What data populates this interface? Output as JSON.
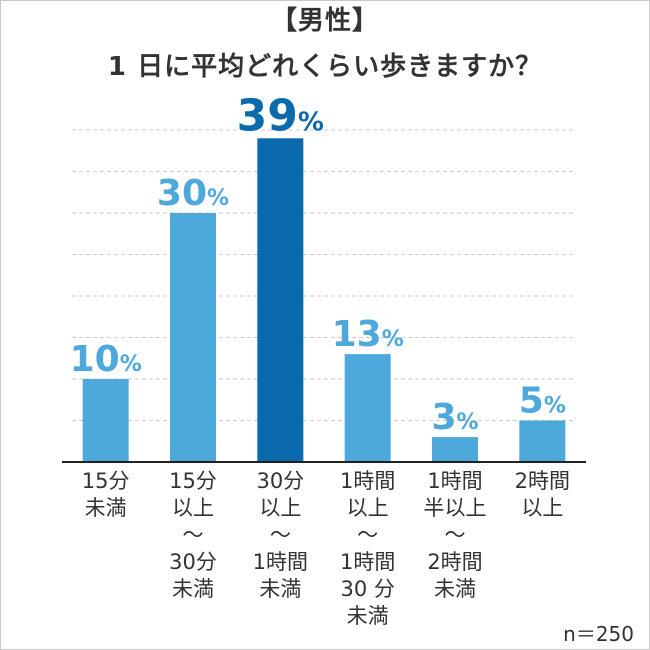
{
  "chart_data": {
    "type": "bar",
    "title": "【男性】",
    "subtitle": "1 日に平均どれくらい歩きますか？",
    "categories": [
      [
        "15分",
        "未満"
      ],
      [
        "15分",
        "以上",
        "〜",
        "30分",
        "未満"
      ],
      [
        "30分",
        "以上",
        "〜",
        "1時間",
        "未満"
      ],
      [
        "1時間",
        "以上",
        "〜",
        "1時間",
        "30 分",
        "未満"
      ],
      [
        "1時間",
        "半以上",
        "〜",
        "2時間",
        "未満"
      ],
      [
        "2時間",
        "以上"
      ]
    ],
    "values": [
      10,
      30,
      39,
      13,
      3,
      5
    ],
    "value_suffix": "%",
    "ylim": [
      0,
      40
    ],
    "grid": true,
    "colors": {
      "bar": "#4da8dc",
      "highlight": "#0b6aad",
      "label": "#4da8dc",
      "highlight_label": "#0b6aad",
      "grid": "#cccccc",
      "axis": "#222222",
      "text": "#333333"
    },
    "highlight_index": 2
  },
  "note": "n＝250"
}
